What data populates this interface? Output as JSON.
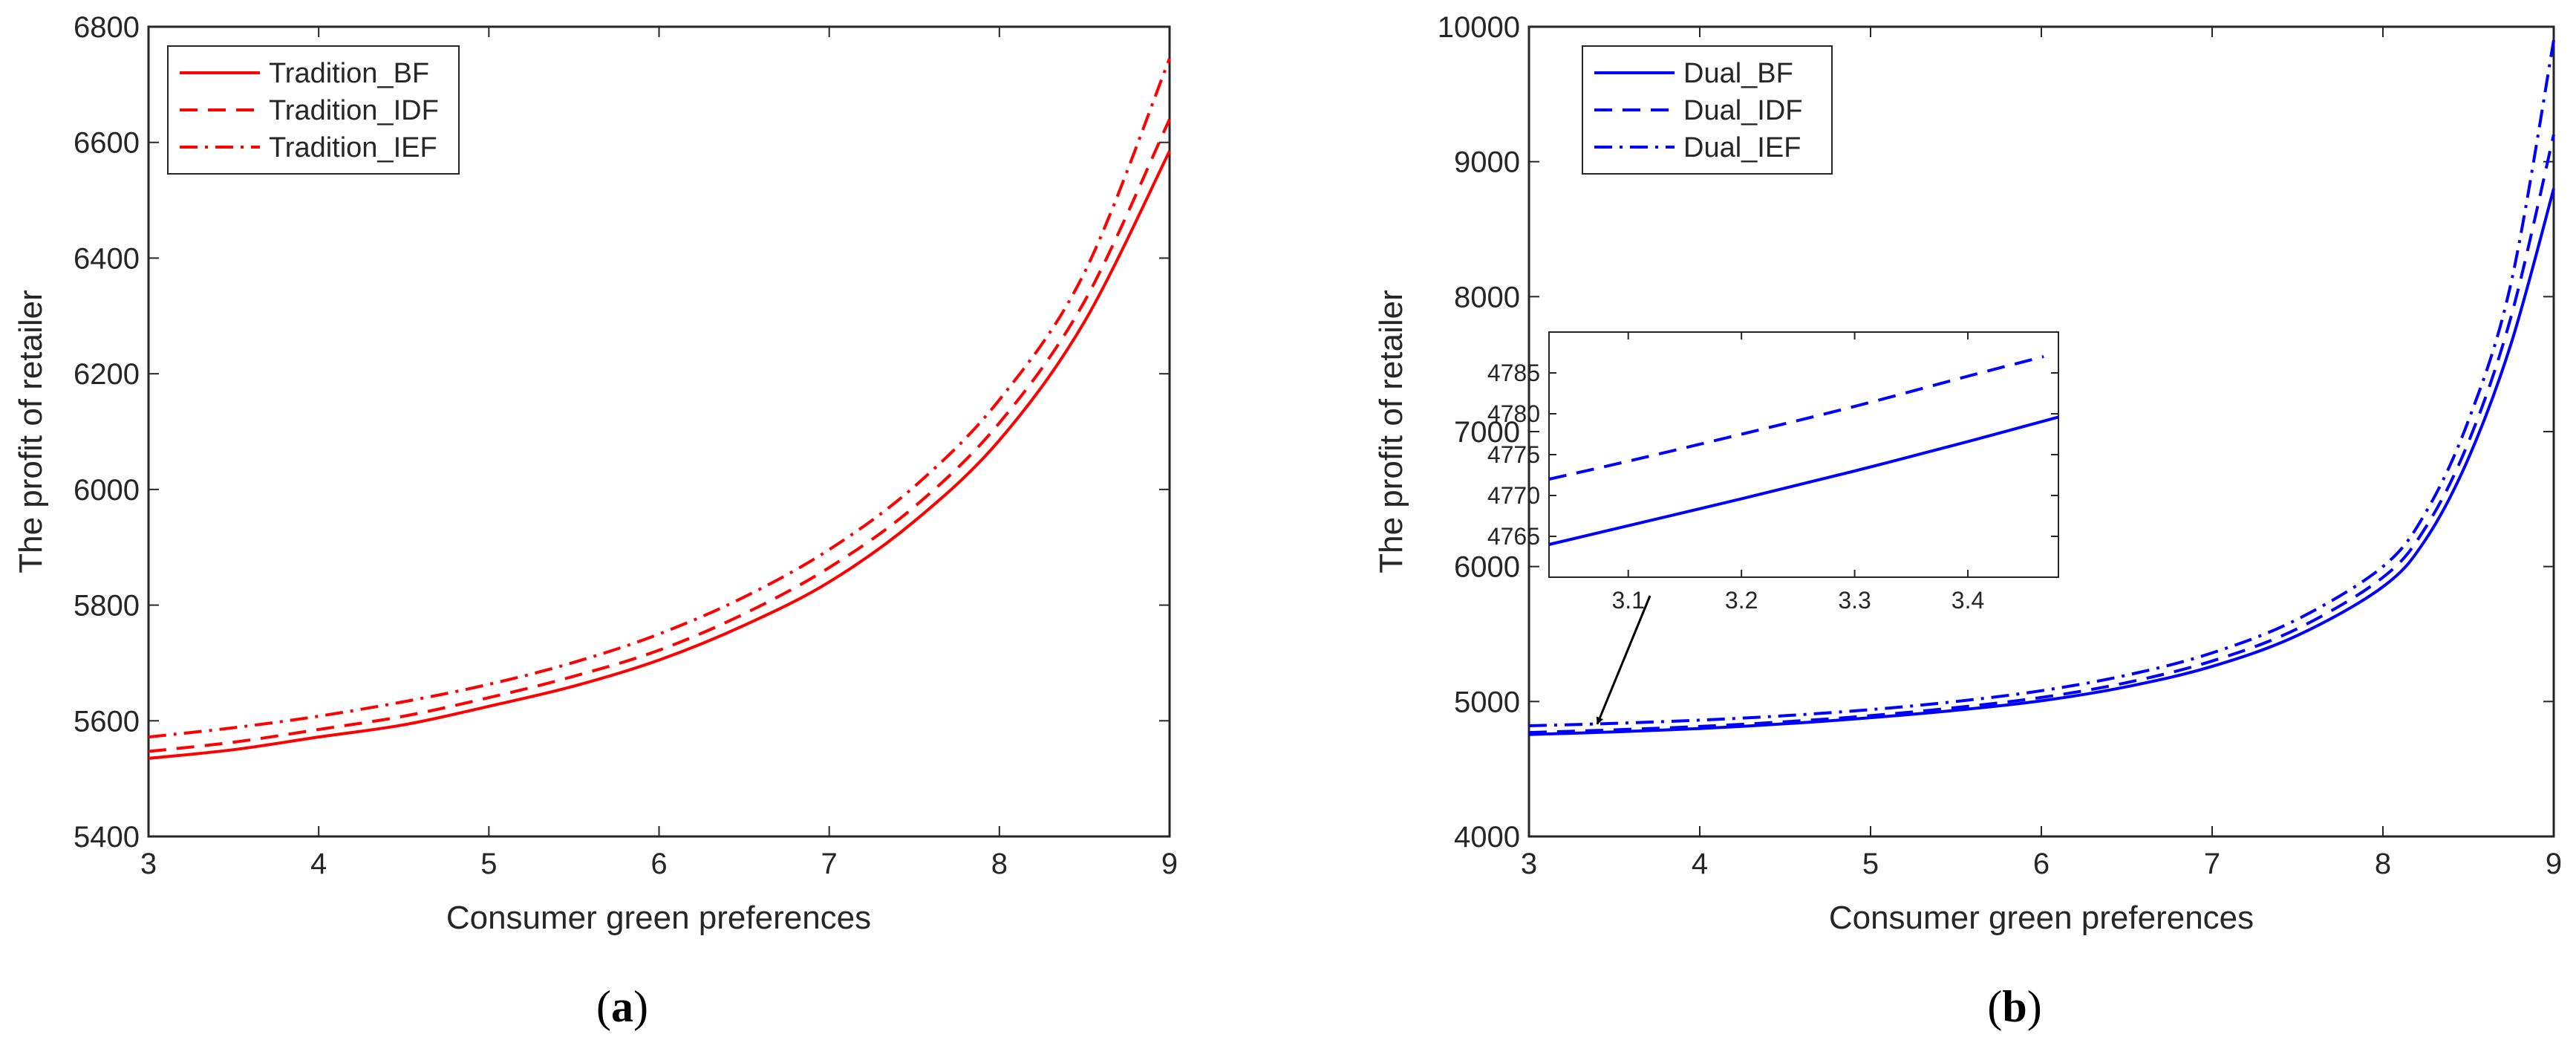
{
  "chart_data": [
    {
      "type": "line",
      "panel": "(a)",
      "panel_paren_open": "(",
      "panel_letter": "a",
      "panel_paren_close": ")",
      "xlabel": "Consumer green preferences",
      "ylabel": "The profit of retailer",
      "xlim": [
        3,
        9
      ],
      "ylim": [
        5400,
        6800
      ],
      "xticks": [
        3,
        4,
        5,
        6,
        7,
        8,
        9
      ],
      "yticks": [
        5400,
        5600,
        5800,
        6000,
        6200,
        6400,
        6600,
        6800
      ],
      "legend_position": "top-left",
      "color": "#ff0000",
      "x": [
        3,
        3.5,
        4,
        4.5,
        5,
        5.5,
        6,
        6.5,
        7,
        7.5,
        8,
        8.5,
        9
      ],
      "series": [
        {
          "name": "Tradition_BF",
          "style": "solid",
          "values": [
            5535,
            5550,
            5572,
            5593,
            5625,
            5660,
            5705,
            5765,
            5840,
            5945,
            6085,
            6290,
            6585
          ]
        },
        {
          "name": "Tradition_IDF",
          "style": "dashed",
          "values": [
            5547,
            5563,
            5585,
            5608,
            5640,
            5677,
            5722,
            5785,
            5865,
            5970,
            6115,
            6325,
            6640
          ]
        },
        {
          "name": "Tradition_IEF",
          "style": "dashdot",
          "values": [
            5572,
            5588,
            5608,
            5633,
            5663,
            5701,
            5750,
            5814,
            5896,
            6005,
            6155,
            6375,
            6745
          ]
        }
      ]
    },
    {
      "type": "line",
      "panel": "(b)",
      "panel_paren_open": "(",
      "panel_letter": "b",
      "panel_paren_close": ")",
      "xlabel": "Consumer green preferences",
      "ylabel": "The profit of retailer",
      "xlim": [
        3,
        9
      ],
      "ylim": [
        4000,
        10000
      ],
      "xticks": [
        3,
        4,
        5,
        6,
        7,
        8,
        9
      ],
      "yticks": [
        4000,
        5000,
        6000,
        7000,
        8000,
        9000,
        10000
      ],
      "legend_position": "top-left",
      "color": "#0000ff",
      "x": [
        3,
        3.5,
        4,
        4.5,
        5,
        5.5,
        6,
        6.5,
        7,
        7.5,
        8,
        8.25,
        8.5,
        8.75,
        9
      ],
      "series": [
        {
          "name": "Dual_BF",
          "style": "solid",
          "values": [
            4755,
            4775,
            4800,
            4835,
            4880,
            4935,
            5005,
            5110,
            5260,
            5490,
            5850,
            6200,
            6800,
            7650,
            8800
          ]
        },
        {
          "name": "Dual_IDF",
          "style": "dashed",
          "values": [
            4770,
            4790,
            4815,
            4850,
            4895,
            4955,
            5030,
            5140,
            5300,
            5540,
            5920,
            6290,
            6920,
            7850,
            9200
          ]
        },
        {
          "name": "Dual_IEF",
          "style": "dashdot",
          "values": [
            4820,
            4838,
            4862,
            4895,
            4940,
            5000,
            5080,
            5195,
            5360,
            5610,
            6000,
            6400,
            7080,
            8100,
            9900
          ]
        }
      ],
      "inset": {
        "xlim": [
          3.03,
          3.48
        ],
        "ylim": [
          4760,
          4790
        ],
        "xticks": [
          3.1,
          3.2,
          3.3,
          3.4
        ],
        "yticks": [
          4765,
          4770,
          4775,
          4780,
          4785
        ],
        "series": [
          {
            "name": "Dual_BF",
            "style": "solid",
            "x": [
              3.03,
              3.1,
              3.2,
              3.3,
              3.4,
              3.48
            ],
            "values": [
              4764.0,
              4766.3,
              4769.6,
              4773.0,
              4776.6,
              4779.6
            ]
          },
          {
            "name": "Dual_IDF",
            "style": "dashed",
            "x": [
              3.03,
              3.1,
              3.2,
              3.3,
              3.4,
              3.467
            ],
            "values": [
              4772.0,
              4774.2,
              4777.5,
              4780.9,
              4784.6,
              4787.0
            ]
          }
        ],
        "arrow_target": {
          "x": 3.4,
          "y": 4800
        }
      }
    }
  ]
}
